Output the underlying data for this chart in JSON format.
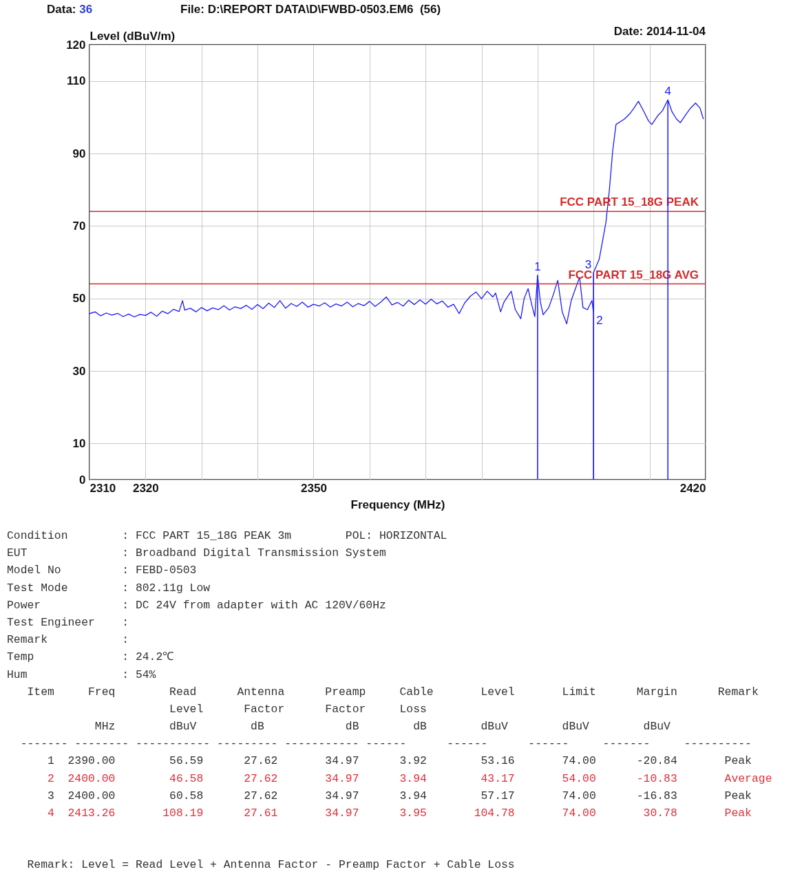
{
  "chart_data": {
    "type": "line",
    "title": "File: D:\\REPORT DATA\\D\\FWBD-0503.EM6  (56)",
    "xlabel": "Frequency (MHz)",
    "ylabel": "Level (dBuV/m)",
    "xlim": [
      2310,
      2420
    ],
    "ylim": [
      0,
      120
    ],
    "xticks": [
      2310,
      2320,
      {
        "value": 2330,
        "label": null
      },
      {
        "value": 2340,
        "label": null
      },
      2350,
      {
        "value": 2360,
        "label": null
      },
      {
        "value": 2370,
        "label": null
      },
      {
        "value": 2380,
        "label": null
      },
      {
        "value": 2390,
        "label": null
      },
      {
        "value": 2400,
        "label": null
      },
      {
        "value": 2410,
        "label": null
      },
      2420
    ],
    "yticks": [
      0,
      10,
      30,
      50,
      70,
      90,
      110,
      120
    ],
    "grid": true,
    "series": [
      {
        "color": "#1a1aff",
        "x": [
          2310,
          2311,
          2312,
          2313,
          2314,
          2315,
          2316,
          2317,
          2318,
          2319,
          2320,
          2321,
          2322,
          2323,
          2324,
          2325,
          2326,
          2326.6,
          2327,
          2328,
          2329,
          2330,
          2331,
          2332,
          2333,
          2334,
          2335,
          2336,
          2337,
          2338,
          2339,
          2340,
          2341,
          2342,
          2343,
          2344,
          2345,
          2346,
          2347,
          2348,
          2349,
          2350,
          2351,
          2352,
          2353,
          2354,
          2355,
          2356,
          2357,
          2358,
          2359,
          2360,
          2361,
          2362,
          2363,
          2364,
          2365,
          2366,
          2367,
          2368,
          2369,
          2370,
          2371,
          2372,
          2373,
          2374,
          2375,
          2376,
          2377,
          2378,
          2379,
          2380,
          2381,
          2382,
          2382.5,
          2383.4,
          2384,
          2385.3,
          2386,
          2387,
          2387.6,
          2388.3,
          2389,
          2389.5,
          2390,
          2390.5,
          2391,
          2392,
          2392.8,
          2393.6,
          2394.4,
          2395.2,
          2396,
          2396.9,
          2397.5,
          2398.1,
          2398.9,
          2399.7,
          2400,
          2400,
          2401,
          2402.2,
          2402.8,
          2403.4,
          2404,
          2405.5,
          2406.5,
          2407.2,
          2408,
          2409,
          2409.8,
          2410.4,
          2411.5,
          2412.3,
          2413.26,
          2414,
          2414.8,
          2415.5,
          2416.5,
          2417.3,
          2418.2,
          2419,
          2419.6
        ],
        "values": [
          45.8,
          46.3,
          45.2,
          46.0,
          45.4,
          45.9,
          45.0,
          45.7,
          44.9,
          45.6,
          45.3,
          46.2,
          45.1,
          46.5,
          45.8,
          47.0,
          46.4,
          49.4,
          46.8,
          47.3,
          46.3,
          47.5,
          46.6,
          47.4,
          46.9,
          48.0,
          46.8,
          47.7,
          47.2,
          48.1,
          47.0,
          48.3,
          47.2,
          48.7,
          47.5,
          49.4,
          47.3,
          48.6,
          47.8,
          49.0,
          47.6,
          48.4,
          47.9,
          48.8,
          47.6,
          48.5,
          47.9,
          49.0,
          47.7,
          48.6,
          48.0,
          49.2,
          47.8,
          49.0,
          50.4,
          48.2,
          48.9,
          47.9,
          49.5,
          48.3,
          49.6,
          48.4,
          49.8,
          48.5,
          49.3,
          47.6,
          48.4,
          45.8,
          48.8,
          50.6,
          51.8,
          49.9,
          52.0,
          50.4,
          51.5,
          46.3,
          49.0,
          52.0,
          47.0,
          44.4,
          50.0,
          52.7,
          48.0,
          45.0,
          56.4,
          49.0,
          45.5,
          47.5,
          51.0,
          55.0,
          46.3,
          43.0,
          49.4,
          53.3,
          55.8,
          47.5,
          46.9,
          49.4,
          46.0,
          57.2,
          60.8,
          71.0,
          79.7,
          90.6,
          98.0,
          99.5,
          101.0,
          102.5,
          104.4,
          101.5,
          99.0,
          98.0,
          100.5,
          101.8,
          104.8,
          101.5,
          99.5,
          98.5,
          100.8,
          102.5,
          103.9,
          102.5,
          99.5
        ]
      }
    ],
    "ref_lines": [
      {
        "axis": "y",
        "value": 74,
        "label": "FCC PART 15_18G PEAK",
        "color": "#d42a2a"
      },
      {
        "axis": "y",
        "value": 54,
        "label": "FCC PART 15_18G AVG",
        "color": "#d42a2a"
      }
    ],
    "annotations": [
      "Data: 36",
      "Date: 2014-11-04",
      {
        "text": "1",
        "x": 2390,
        "y": 56.4
      },
      {
        "text": "2",
        "x": 2400,
        "y": 46.0
      },
      {
        "text": "3",
        "x": 2400,
        "y": 57.2
      },
      {
        "text": "4",
        "x": 2413.26,
        "y": 104.8
      },
      "Condition        : FCC PART 15_18G PEAK 3m        POL: HORIZONTAL",
      "EUT              : Broadband Digital Transmission System",
      "Model No         : FEBD-0503",
      "Test Mode        : 802.11g Low",
      "Power            : DC 24V from adapter with AC 120V/60Hz",
      "Test Engineer    :",
      "Remark           :",
      "Temp             : 24.2℃",
      "Hum              : 54%",
      "   Item     Freq        Read      Antenna      Preamp     Cable       Level       Limit      Margin      Remark",
      "                        Level      Factor      Factor     Loss",
      "             MHz        dBuV        dB            dB        dB        dBuV        dBuV        dBuV",
      "  ------- -------- ----------- --------- ----------- ------      ------      ------     -------     ----------",
      "      1  2390.00        56.59      27.62       34.97      3.92        53.16       74.00      -20.84       Peak",
      "      2  2400.00        46.58      27.62       34.97      3.94        43.17       54.00      -10.83       Average",
      "      3  2400.00        60.58      27.62       34.97      3.94        57.17       74.00      -16.83       Peak",
      "      4  2413.26       108.19      27.61       34.97      3.95       104.78       74.00       30.78       Peak",
      "   Remark: Level = Read Level + Antenna Factor - Preamp Factor + Cable Loss"
    ]
  }
}
